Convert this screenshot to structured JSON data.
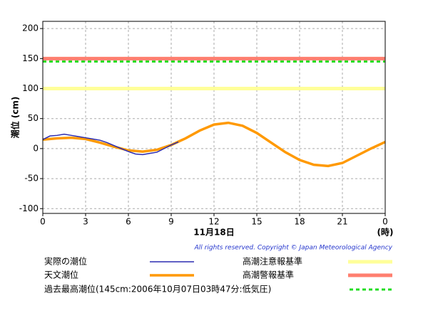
{
  "chart_data": {
    "type": "line",
    "ylabel": "潮位 (cm)",
    "xlabel": "11月18日",
    "xunit": "(時)",
    "copyright": "All rights reserved. Copyright © Japan Meteorological Agency",
    "xlim": [
      0,
      24
    ],
    "xticks": [
      0,
      3,
      6,
      9,
      12,
      15,
      18,
      21,
      {
        "value": 24,
        "label": "0"
      }
    ],
    "ylim": [
      -108,
      212
    ],
    "yticks": [
      -100,
      -50,
      0,
      50,
      100,
      150,
      200
    ],
    "grid": true,
    "series": [
      {
        "name": "実際の潮位",
        "color": "#2b2bb0",
        "x": [
          0,
          0.5,
          1,
          1.5,
          2,
          2.5,
          3,
          3.5,
          4,
          4.5,
          5,
          5.5,
          6,
          6.5,
          7,
          7.5,
          8,
          8.5,
          9,
          9.5
        ],
        "values": [
          15,
          21,
          22,
          24,
          22,
          20,
          18,
          16,
          14,
          10,
          5,
          0,
          -5,
          -9,
          -10,
          -8,
          -6,
          0,
          6,
          11
        ]
      },
      {
        "name": "天文潮位",
        "color": "#ff9900",
        "x": [
          0,
          1,
          2,
          3,
          4,
          5,
          6,
          7,
          8,
          9,
          10,
          11,
          12,
          13,
          14,
          15,
          16,
          17,
          18,
          19,
          20,
          21,
          22,
          23,
          24
        ],
        "values": [
          15,
          17,
          18,
          16,
          10,
          3,
          -3,
          -5,
          -2,
          6,
          17,
          30,
          40,
          43,
          38,
          26,
          10,
          -6,
          -19,
          -27,
          -29,
          -24,
          -12,
          0,
          11
        ]
      }
    ],
    "reference_lines": [
      {
        "name": "高潮注意報基準",
        "value": 100,
        "color": "#ffff99",
        "style": "solid"
      },
      {
        "name": "高潮警報基準",
        "value": 150,
        "color": "#ff7f6f",
        "style": "solid"
      },
      {
        "name": "過去最高潮位(145cm:2006年10月07日03時47分:低気圧)",
        "value": 145,
        "color": "#22dd22",
        "style": "dashed"
      }
    ]
  }
}
